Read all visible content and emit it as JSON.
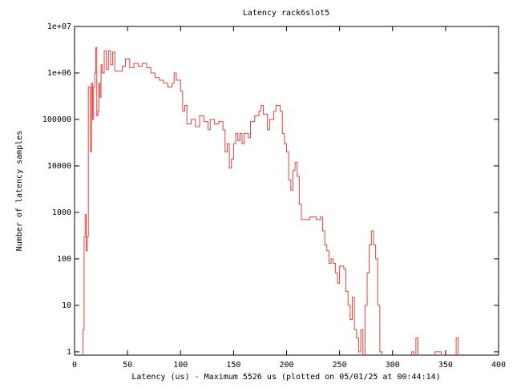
{
  "chart_data": {
    "type": "line",
    "step": true,
    "log_y": true,
    "title": "Latency rack6slot5",
    "xlabel": "Latency (us) - Maximum 5526 us (plotted on 05/01/25 at 00:44:14)",
    "ylabel": "Number of latency samples",
    "xlim": [
      0,
      400
    ],
    "xticks": [
      0,
      50,
      100,
      150,
      200,
      250,
      300,
      350,
      400
    ],
    "ylim": [
      0.85,
      10000000
    ],
    "yticks": [
      1,
      10,
      100,
      1000,
      10000,
      100000,
      {
        "value": 1000000,
        "label": "1e+06"
      },
      {
        "value": 10000000,
        "label": "1e+07"
      }
    ],
    "x": [
      8,
      9,
      10,
      11,
      12,
      13,
      15,
      16,
      17,
      18,
      19,
      20,
      21,
      22,
      23,
      24,
      25,
      26,
      28,
      30,
      32,
      34,
      36,
      38,
      42,
      45,
      48,
      52,
      56,
      60,
      64,
      68,
      72,
      76,
      80,
      84,
      88,
      92,
      94,
      96,
      100,
      102,
      104,
      106,
      110,
      114,
      118,
      122,
      126,
      128,
      132,
      136,
      140,
      142,
      144,
      146,
      148,
      150,
      152,
      154,
      156,
      158,
      160,
      164,
      166,
      170,
      174,
      176,
      178,
      182,
      184,
      188,
      190,
      194,
      196,
      198,
      200,
      202,
      204,
      206,
      208,
      210,
      212,
      214,
      218,
      222,
      228,
      232,
      234,
      236,
      238,
      240,
      242,
      244,
      246,
      248,
      250,
      254,
      256,
      258,
      260,
      262,
      264,
      266,
      268,
      270,
      272,
      274,
      276,
      278,
      280,
      282,
      284,
      286,
      288,
      290,
      318,
      320,
      322,
      324,
      340,
      346,
      360,
      362
    ],
    "series": [
      {
        "color": "#e8413c",
        "values": [
          3,
          300,
          900,
          150,
          300,
          500000,
          20000,
          600000,
          100000,
          500000,
          1000000,
          3500000,
          120000,
          150000,
          600000,
          300000,
          1500000,
          1000000,
          3000000,
          1200000,
          3000000,
          1500000,
          2800000,
          1100000,
          1100000,
          1400000,
          2000000,
          1300000,
          1600000,
          1400000,
          1600000,
          1300000,
          1000000,
          800000,
          700000,
          600000,
          500000,
          600000,
          1000000,
          700000,
          400000,
          150000,
          200000,
          80000,
          100000,
          70000,
          120000,
          90000,
          60000,
          100000,
          80000,
          90000,
          60000,
          20000,
          30000,
          9000,
          14000,
          30000,
          50000,
          35000,
          50000,
          30000,
          50000,
          40000,
          90000,
          120000,
          150000,
          200000,
          130000,
          60000,
          100000,
          150000,
          200000,
          150000,
          50000,
          30000,
          20000,
          5000,
          3000,
          8000,
          12000,
          6000,
          1500,
          700,
          700,
          800,
          700,
          800,
          400,
          200,
          150,
          80,
          100,
          80,
          50,
          30,
          70,
          60,
          20,
          10,
          5,
          15,
          3,
          2,
          1,
          3,
          null,
          10,
          50,
          200,
          400,
          200,
          100,
          10,
          1,
          null,
          1,
          null,
          2,
          null,
          1,
          null,
          2,
          null
        ]
      }
    ]
  }
}
